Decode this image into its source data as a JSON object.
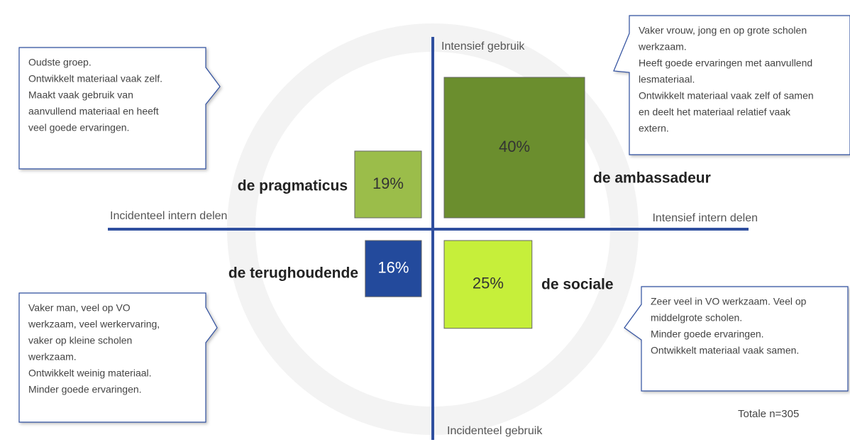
{
  "axes": {
    "top": "Intensief gebruik",
    "bottom": "Incidenteel gebruik",
    "left": "Incidenteel intern delen",
    "right": "Intensief intern delen"
  },
  "quadrants": [
    {
      "name": "de pragmaticus",
      "value": 19,
      "value_label": "19%",
      "color": "#9bbd4a",
      "description": [
        "Oudste groep.",
        "Ontwikkelt materiaal vaak zelf.",
        "Maakt vaak gebruik van",
        "aanvullend materiaal en heeft",
        "veel goede ervaringen."
      ]
    },
    {
      "name": "de ambassadeur",
      "value": 40,
      "value_label": "40%",
      "color": "#6b8e2e",
      "description": [
        "Vaker vrouw, jong en op grote scholen",
        "werkzaam.",
        "Heeft goede ervaringen met aanvullend",
        "lesmateriaal.",
        "Ontwikkelt materiaal vaak zelf of samen",
        "en deelt het materiaal relatief vaak",
        "extern."
      ]
    },
    {
      "name": "de terughoudende",
      "value": 16,
      "value_label": "16%",
      "color": "#234a9c",
      "description": [
        "Vaker man, veel op VO",
        "werkzaam, veel werkervaring,",
        "vaker op kleine scholen",
        "werkzaam.",
        "Ontwikkelt weinig materiaal.",
        "Minder goede ervaringen."
      ]
    },
    {
      "name": "de sociale",
      "value": 25,
      "value_label": "25%",
      "color": "#c6ef3a",
      "description": [
        "Zeer veel in VO werkzaam. Veel op",
        "middelgrote scholen.",
        "Minder goede ervaringen.",
        "Ontwikkelt materiaal vaak samen."
      ]
    }
  ],
  "footnote": "Totale n=305"
}
